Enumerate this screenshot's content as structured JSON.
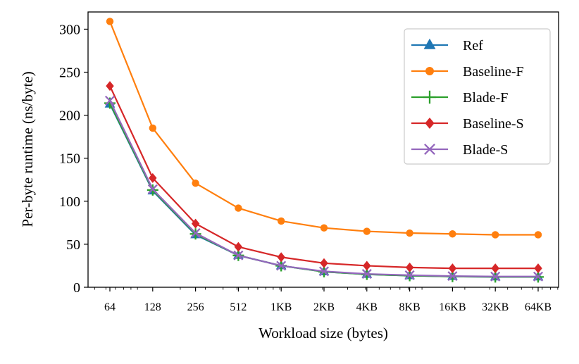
{
  "chart_data": {
    "type": "line",
    "title": "",
    "xlabel": "Workload size (bytes)",
    "ylabel": "Per-byte runtime (ns/byte)",
    "x_scale": "log2",
    "categories": [
      "64",
      "128",
      "256",
      "512",
      "1KB",
      "2KB",
      "4KB",
      "8KB",
      "16KB",
      "32KB",
      "64KB"
    ],
    "ylim": [
      0,
      320
    ],
    "yticks": [
      0,
      50,
      100,
      150,
      200,
      250,
      300
    ],
    "grid": false,
    "legend_position": "top-right",
    "series": [
      {
        "name": "Ref",
        "color": "#1f77b4",
        "marker": "triangle",
        "values": [
          213,
          112,
          61,
          37,
          25,
          18,
          15,
          13.5,
          12.5,
          12,
          12
        ]
      },
      {
        "name": "Baseline-F",
        "color": "#ff7f0e",
        "marker": "circle",
        "values": [
          309,
          185,
          121,
          92,
          77,
          69,
          65,
          63,
          62,
          61,
          61
        ]
      },
      {
        "name": "Blade-F",
        "color": "#2ca02c",
        "marker": "plus",
        "values": [
          214,
          113,
          62,
          37,
          25,
          18,
          15,
          13.5,
          12.5,
          12,
          12
        ]
      },
      {
        "name": "Baseline-S",
        "color": "#d62728",
        "marker": "diamond",
        "values": [
          234,
          127,
          74,
          47,
          35,
          28,
          25,
          23,
          22,
          22,
          22
        ]
      },
      {
        "name": "Blade-S",
        "color": "#9467bd",
        "marker": "x",
        "values": [
          217,
          114,
          63,
          37,
          25,
          18.5,
          15.5,
          14,
          13,
          12.5,
          12.5
        ]
      }
    ]
  }
}
